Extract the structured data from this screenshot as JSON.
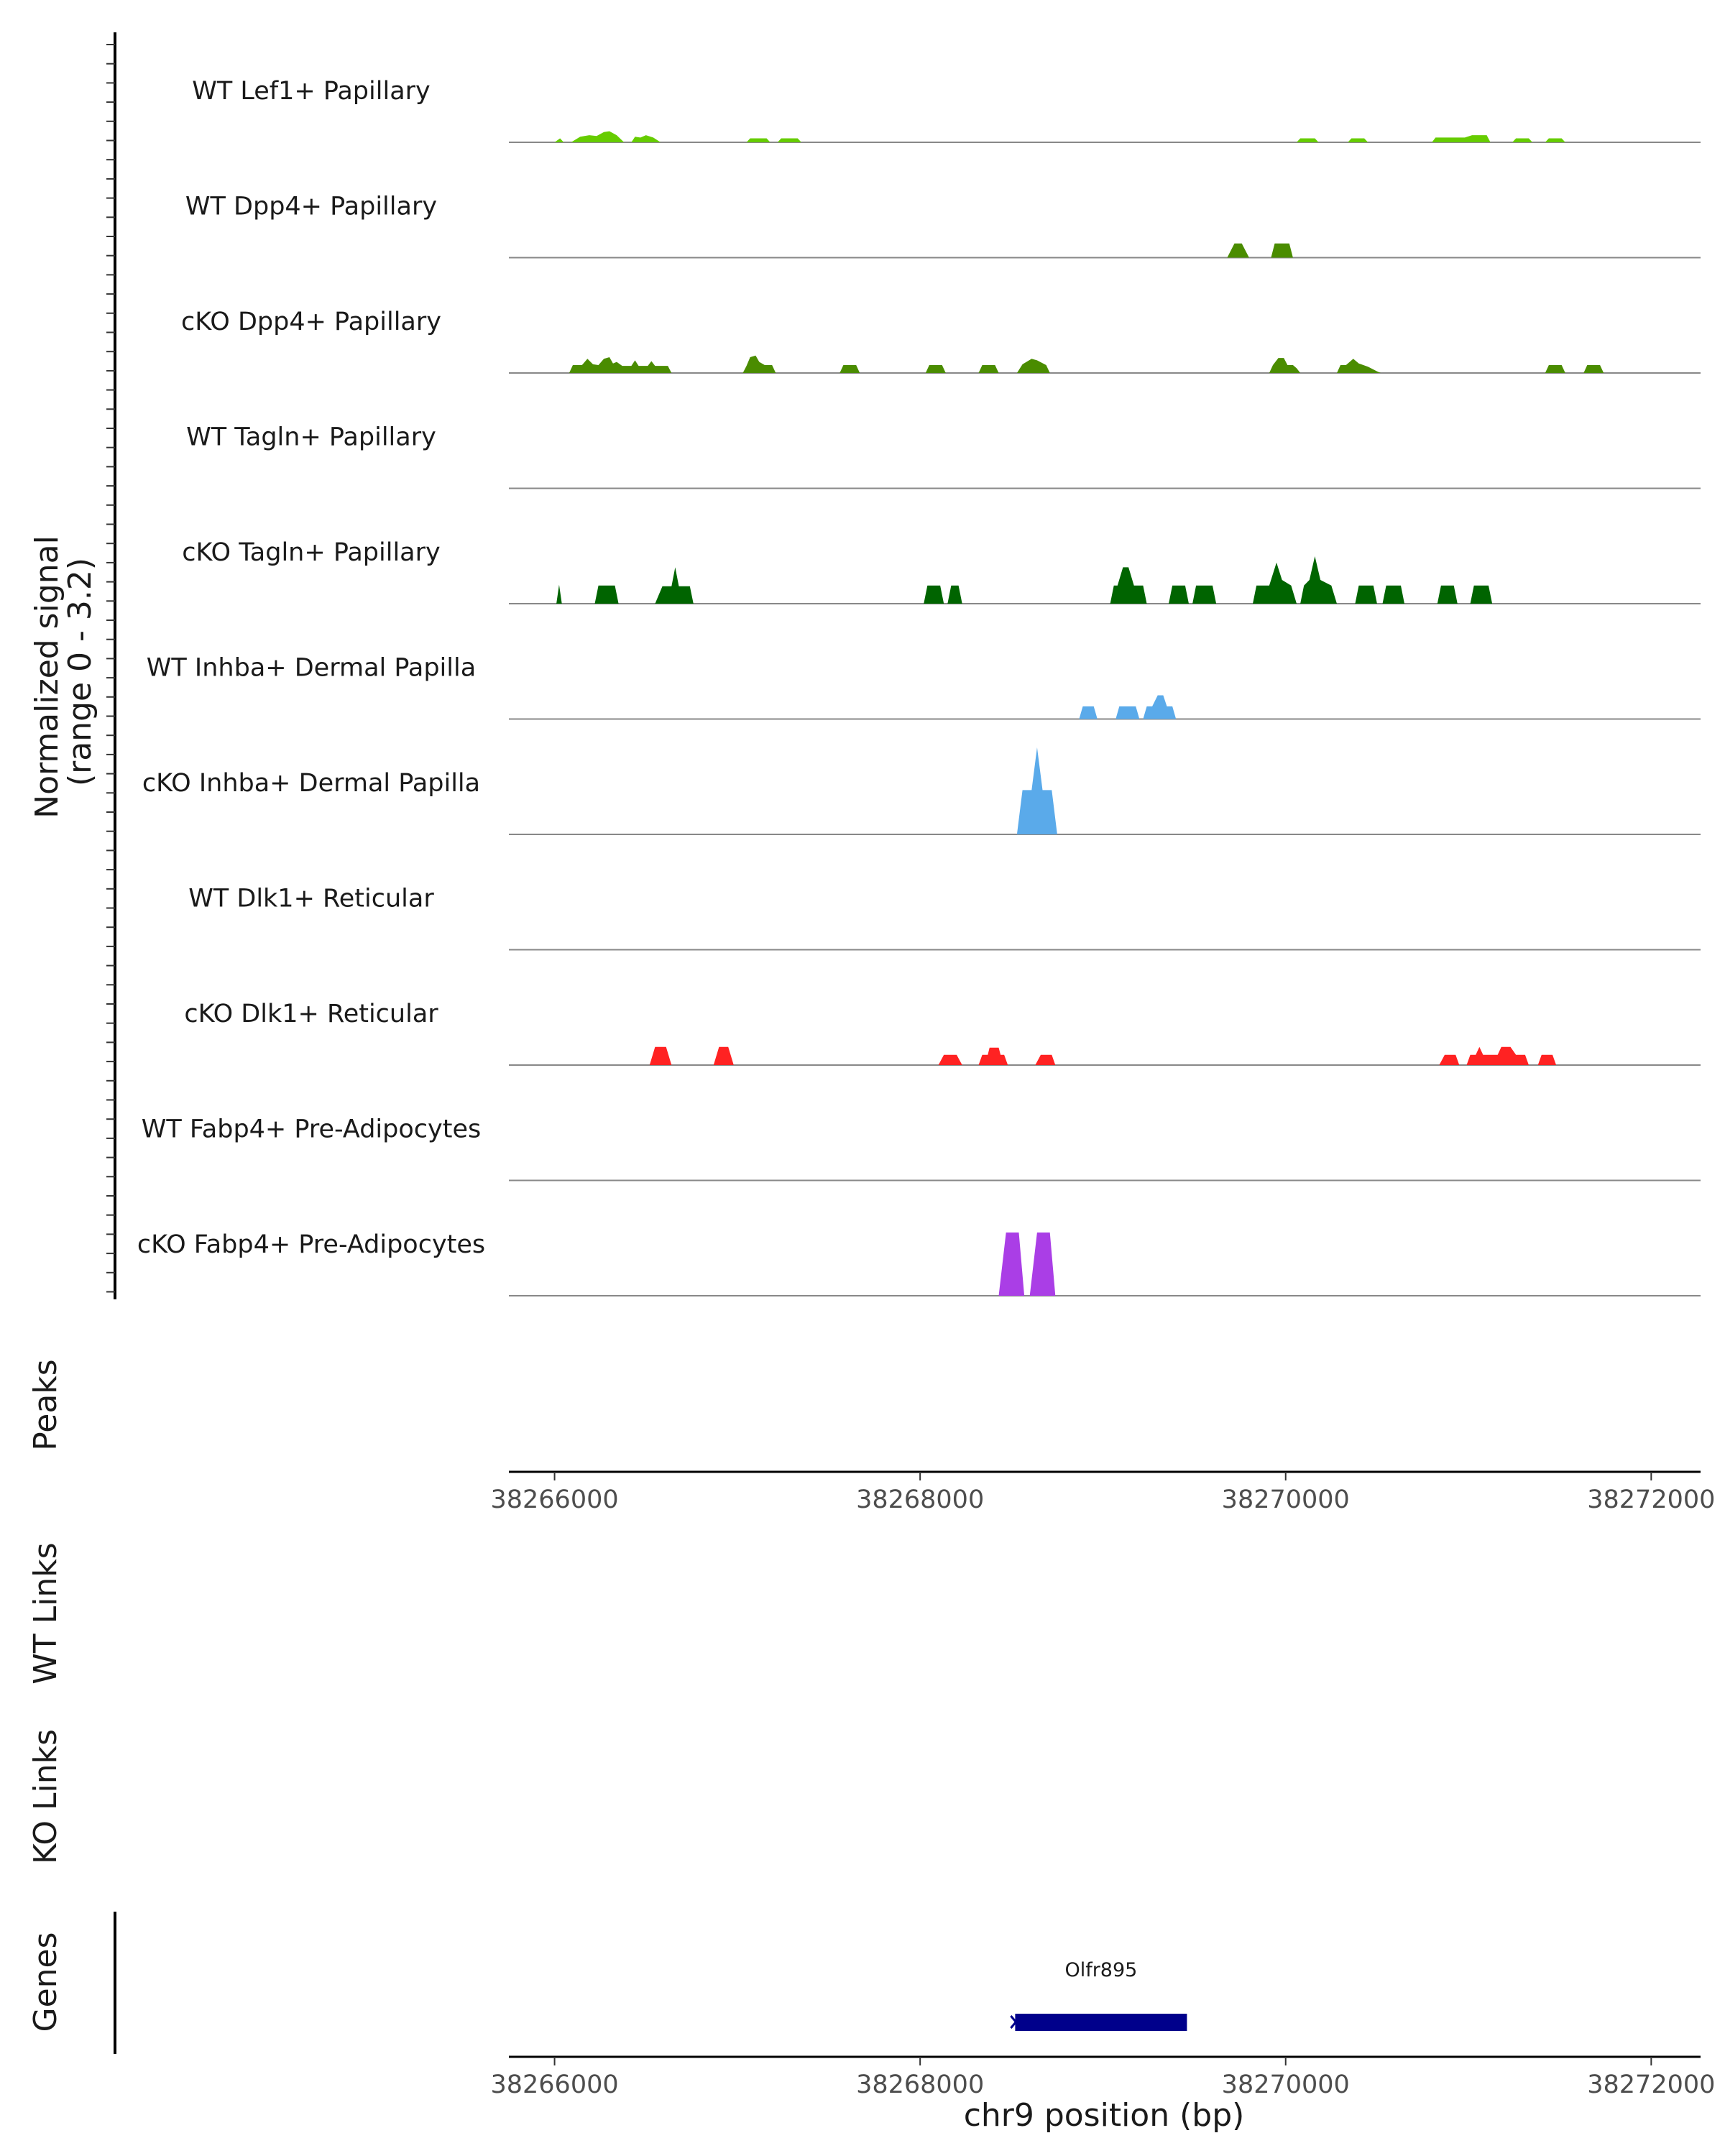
{
  "chart_data": {
    "type": "area",
    "xlabel": "chr9 position (bp)",
    "xlim": [
      38265750,
      38272270
    ],
    "x_ticks": [
      38266000,
      38268000,
      38270000,
      38272000
    ],
    "x_tick_labels": [
      "38266000",
      "38268000",
      "38270000",
      "38272000"
    ],
    "ylabel": "Normalized signal",
    "ylabel_range": "(range 0 - 3.2)",
    "ylim": [
      0,
      3.2
    ],
    "panel_labels": {
      "peaks": "Peaks",
      "wt_links": "WT Links",
      "ko_links": "KO Links",
      "genes": "Genes"
    },
    "tracks": [
      {
        "name": "WT Lef1+ Papillary",
        "color": "#66cc00",
        "points": [
          [
            38266000,
            0
          ],
          [
            38266030,
            0.25
          ],
          [
            38266050,
            0
          ],
          [
            38266090,
            0
          ],
          [
            38266140,
            0.35
          ],
          [
            38266190,
            0.45
          ],
          [
            38266230,
            0.4
          ],
          [
            38266270,
            0.65
          ],
          [
            38266300,
            0.7
          ],
          [
            38266340,
            0.45
          ],
          [
            38266380,
            0
          ],
          [
            38266420,
            0
          ],
          [
            38266440,
            0.35
          ],
          [
            38266470,
            0.3
          ],
          [
            38266500,
            0.45
          ],
          [
            38266540,
            0.3
          ],
          [
            38266580,
            0
          ],
          [
            38267050,
            0
          ],
          [
            38267070,
            0.25
          ],
          [
            38267160,
            0.25
          ],
          [
            38267180,
            0
          ],
          [
            38267220,
            0
          ],
          [
            38267240,
            0.25
          ],
          [
            38267330,
            0.25
          ],
          [
            38267350,
            0
          ],
          [
            38270060,
            0
          ],
          [
            38270080,
            0.25
          ],
          [
            38270160,
            0.25
          ],
          [
            38270180,
            0
          ],
          [
            38270340,
            0
          ],
          [
            38270360,
            0.25
          ],
          [
            38270430,
            0.25
          ],
          [
            38270450,
            0
          ],
          [
            38270800,
            0
          ],
          [
            38270820,
            0.3
          ],
          [
            38270980,
            0.3
          ],
          [
            38271020,
            0.45
          ],
          [
            38271100,
            0.45
          ],
          [
            38271120,
            0
          ],
          [
            38271240,
            0
          ],
          [
            38271260,
            0.25
          ],
          [
            38271330,
            0.25
          ],
          [
            38271350,
            0
          ],
          [
            38271420,
            0
          ],
          [
            38271440,
            0.25
          ],
          [
            38271510,
            0.25
          ],
          [
            38271530,
            0
          ]
        ]
      },
      {
        "name": "WT Dpp4+ Papillary",
        "color": "#4a8c00",
        "points": [
          [
            38269680,
            0
          ],
          [
            38269720,
            0.9
          ],
          [
            38269760,
            0.9
          ],
          [
            38269800,
            0
          ],
          [
            38269920,
            0
          ],
          [
            38269940,
            0.9
          ],
          [
            38270020,
            0.9
          ],
          [
            38270040,
            0
          ]
        ]
      },
      {
        "name": "cKO Dpp4+ Papillary",
        "color": "#4a8c00",
        "points": [
          [
            38266080,
            0
          ],
          [
            38266100,
            0.5
          ],
          [
            38266150,
            0.5
          ],
          [
            38266180,
            0.9
          ],
          [
            38266210,
            0.55
          ],
          [
            38266240,
            0.5
          ],
          [
            38266270,
            0.9
          ],
          [
            38266300,
            1.0
          ],
          [
            38266320,
            0.6
          ],
          [
            38266340,
            0.7
          ],
          [
            38266370,
            0.45
          ],
          [
            38266420,
            0.45
          ],
          [
            38266440,
            0.8
          ],
          [
            38266460,
            0.45
          ],
          [
            38266510,
            0.45
          ],
          [
            38266530,
            0.75
          ],
          [
            38266550,
            0.45
          ],
          [
            38266620,
            0.45
          ],
          [
            38266640,
            0
          ],
          [
            38267030,
            0
          ],
          [
            38267050,
            0.45
          ],
          [
            38267070,
            1.0
          ],
          [
            38267100,
            1.1
          ],
          [
            38267120,
            0.7
          ],
          [
            38267150,
            0.5
          ],
          [
            38267190,
            0.5
          ],
          [
            38267210,
            0
          ],
          [
            38267560,
            0
          ],
          [
            38267580,
            0.5
          ],
          [
            38267650,
            0.5
          ],
          [
            38267670,
            0
          ],
          [
            38268030,
            0
          ],
          [
            38268050,
            0.5
          ],
          [
            38268120,
            0.5
          ],
          [
            38268140,
            0
          ],
          [
            38268320,
            0
          ],
          [
            38268340,
            0.5
          ],
          [
            38268410,
            0.5
          ],
          [
            38268430,
            0
          ],
          [
            38268530,
            0
          ],
          [
            38268560,
            0.55
          ],
          [
            38268610,
            0.9
          ],
          [
            38268640,
            0.8
          ],
          [
            38268690,
            0.5
          ],
          [
            38268710,
            0
          ],
          [
            38269910,
            0
          ],
          [
            38269930,
            0.5
          ],
          [
            38269960,
            0.95
          ],
          [
            38269990,
            0.95
          ],
          [
            38270010,
            0.5
          ],
          [
            38270040,
            0.5
          ],
          [
            38270060,
            0.3
          ],
          [
            38270080,
            0
          ],
          [
            38270280,
            0
          ],
          [
            38270300,
            0.5
          ],
          [
            38270330,
            0.5
          ],
          [
            38270370,
            0.9
          ],
          [
            38270400,
            0.6
          ],
          [
            38270450,
            0.4
          ],
          [
            38270500,
            0.1
          ],
          [
            38270520,
            0
          ],
          [
            38271420,
            0
          ],
          [
            38271440,
            0.5
          ],
          [
            38271510,
            0.5
          ],
          [
            38271530,
            0
          ],
          [
            38271630,
            0
          ],
          [
            38271650,
            0.5
          ],
          [
            38271720,
            0.5
          ],
          [
            38271740,
            0
          ]
        ]
      },
      {
        "name": "WT Tagln+ Papillary",
        "color": "#006400",
        "points": []
      },
      {
        "name": "cKO Tagln+ Papillary",
        "color": "#006400",
        "points": [
          [
            38266010,
            0
          ],
          [
            38266025,
            1.2
          ],
          [
            38266040,
            0
          ],
          [
            38266220,
            0
          ],
          [
            38266240,
            1.15
          ],
          [
            38266330,
            1.15
          ],
          [
            38266350,
            0
          ],
          [
            38266550,
            0
          ],
          [
            38266590,
            1.1
          ],
          [
            38266640,
            1.1
          ],
          [
            38266660,
            2.3
          ],
          [
            38266680,
            1.1
          ],
          [
            38266740,
            1.1
          ],
          [
            38266760,
            0
          ],
          [
            38268020,
            0
          ],
          [
            38268040,
            1.15
          ],
          [
            38268110,
            1.15
          ],
          [
            38268130,
            0
          ],
          [
            38268150,
            0
          ],
          [
            38268170,
            1.15
          ],
          [
            38268210,
            1.15
          ],
          [
            38268230,
            0
          ],
          [
            38269040,
            0
          ],
          [
            38269060,
            1.15
          ],
          [
            38269080,
            1.15
          ],
          [
            38269110,
            2.3
          ],
          [
            38269140,
            2.3
          ],
          [
            38269170,
            1.15
          ],
          [
            38269220,
            1.15
          ],
          [
            38269240,
            0
          ],
          [
            38269360,
            0
          ],
          [
            38269380,
            1.15
          ],
          [
            38269450,
            1.15
          ],
          [
            38269470,
            0
          ],
          [
            38269490,
            0
          ],
          [
            38269510,
            1.15
          ],
          [
            38269600,
            1.15
          ],
          [
            38269620,
            0
          ],
          [
            38269820,
            0
          ],
          [
            38269840,
            1.15
          ],
          [
            38269910,
            1.15
          ],
          [
            38269950,
            2.6
          ],
          [
            38269980,
            1.5
          ],
          [
            38270030,
            1.15
          ],
          [
            38270060,
            0
          ],
          [
            38270080,
            0
          ],
          [
            38270100,
            1.15
          ],
          [
            38270130,
            1.5
          ],
          [
            38270160,
            3.0
          ],
          [
            38270190,
            1.5
          ],
          [
            38270250,
            1.15
          ],
          [
            38270280,
            0
          ],
          [
            38270380,
            0
          ],
          [
            38270400,
            1.15
          ],
          [
            38270480,
            1.15
          ],
          [
            38270500,
            0
          ],
          [
            38270530,
            0
          ],
          [
            38270550,
            1.15
          ],
          [
            38270630,
            1.15
          ],
          [
            38270650,
            0
          ],
          [
            38270830,
            0
          ],
          [
            38270850,
            1.15
          ],
          [
            38270920,
            1.15
          ],
          [
            38270940,
            0
          ],
          [
            38271010,
            0
          ],
          [
            38271030,
            1.15
          ],
          [
            38271110,
            1.15
          ],
          [
            38271130,
            0
          ]
        ]
      },
      {
        "name": "WT Inhba+ Dermal Papilla",
        "color": "#5aaaea",
        "points": [
          [
            38268870,
            0
          ],
          [
            38268890,
            0.8
          ],
          [
            38268950,
            0.8
          ],
          [
            38268970,
            0
          ],
          [
            38269070,
            0
          ],
          [
            38269090,
            0.8
          ],
          [
            38269180,
            0.8
          ],
          [
            38269200,
            0
          ],
          [
            38269220,
            0
          ],
          [
            38269240,
            0.8
          ],
          [
            38269270,
            0.8
          ],
          [
            38269300,
            1.5
          ],
          [
            38269330,
            1.5
          ],
          [
            38269350,
            0.8
          ],
          [
            38269380,
            0.8
          ],
          [
            38269400,
            0
          ]
        ]
      },
      {
        "name": "cKO Inhba+ Dermal Papilla",
        "color": "#5aaaea",
        "points": [
          [
            38268530,
            0
          ],
          [
            38268560,
            2.8
          ],
          [
            38268610,
            2.8
          ],
          [
            38268640,
            5.5
          ],
          [
            38268670,
            2.8
          ],
          [
            38268720,
            2.8
          ],
          [
            38268750,
            0
          ]
        ]
      },
      {
        "name": "WT Dlk1+ Reticular",
        "color": "#ff2222",
        "points": []
      },
      {
        "name": "cKO Dlk1+ Reticular",
        "color": "#ff2222",
        "points": [
          [
            38266520,
            0
          ],
          [
            38266550,
            1.15
          ],
          [
            38266610,
            1.15
          ],
          [
            38266640,
            0
          ],
          [
            38266870,
            0
          ],
          [
            38266900,
            1.15
          ],
          [
            38266950,
            1.15
          ],
          [
            38266980,
            0
          ],
          [
            38268100,
            0
          ],
          [
            38268130,
            0.65
          ],
          [
            38268200,
            0.65
          ],
          [
            38268230,
            0
          ],
          [
            38268320,
            0
          ],
          [
            38268340,
            0.65
          ],
          [
            38268370,
            0.65
          ],
          [
            38268380,
            1.1
          ],
          [
            38268430,
            1.1
          ],
          [
            38268440,
            0.65
          ],
          [
            38268460,
            0.65
          ],
          [
            38268480,
            0
          ],
          [
            38268630,
            0
          ],
          [
            38268660,
            0.65
          ],
          [
            38268720,
            0.65
          ],
          [
            38268740,
            0
          ],
          [
            38270840,
            0
          ],
          [
            38270870,
            0.65
          ],
          [
            38270930,
            0.65
          ],
          [
            38270950,
            0
          ],
          [
            38270990,
            0
          ],
          [
            38271010,
            0.65
          ],
          [
            38271040,
            0.65
          ],
          [
            38271060,
            1.15
          ],
          [
            38271080,
            0.65
          ],
          [
            38271160,
            0.65
          ],
          [
            38271180,
            1.15
          ],
          [
            38271230,
            1.15
          ],
          [
            38271260,
            0.65
          ],
          [
            38271310,
            0.65
          ],
          [
            38271330,
            0
          ],
          [
            38271380,
            0
          ],
          [
            38271400,
            0.65
          ],
          [
            38271460,
            0.65
          ],
          [
            38271480,
            0
          ]
        ]
      },
      {
        "name": "WT Fabp4+ Pre-Adipocytes",
        "color": "#aa3ee6",
        "points": []
      },
      {
        "name": "cKO Fabp4+ Pre-Adipocytes",
        "color": "#aa3ee6",
        "points": [
          [
            38268430,
            0
          ],
          [
            38268470,
            4.0
          ],
          [
            38268540,
            4.0
          ],
          [
            38268570,
            0
          ],
          [
            38268600,
            0
          ],
          [
            38268640,
            4.0
          ],
          [
            38268710,
            4.0
          ],
          [
            38268740,
            0
          ]
        ]
      }
    ],
    "genes": [
      {
        "name": "Olfr895",
        "start": 38268520,
        "end": 38269460,
        "strand": "-",
        "color": "#00008b"
      }
    ]
  }
}
